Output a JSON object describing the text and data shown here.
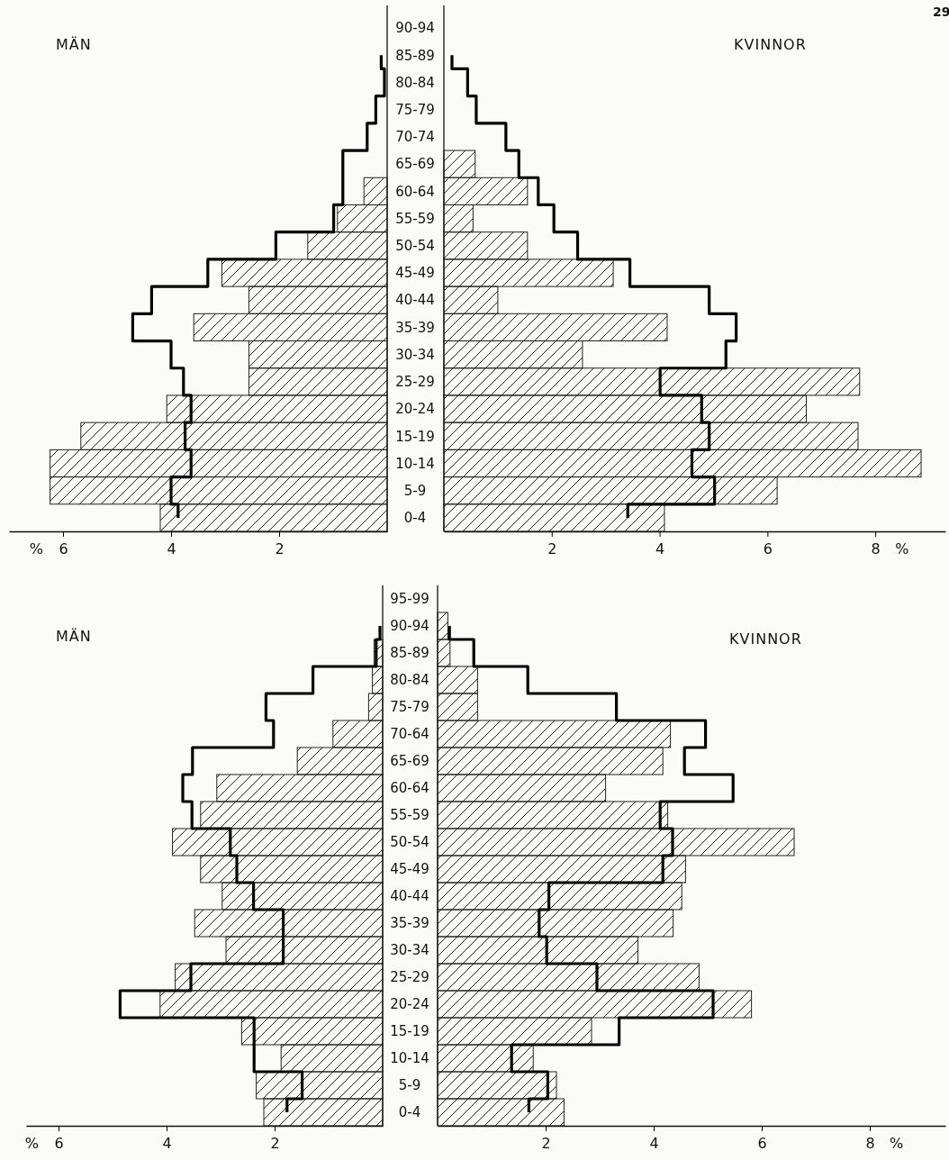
{
  "chart_data": [
    {
      "type": "bar",
      "orientation": "horizontal",
      "title": "MÄN",
      "xlabel": "%",
      "xlim": [
        7,
        0
      ],
      "xticks": [
        6,
        4,
        2
      ],
      "categories": [
        "90-94",
        "85-89",
        "80-84",
        "75-79",
        "70-74",
        "65-69",
        "60-64",
        "55-59",
        "50-54",
        "45-49",
        "40-44",
        "35-39",
        "30-34",
        "25-29",
        "20-24",
        "15-19",
        "10-14",
        "5-9",
        "0-4"
      ],
      "series": [
        {
          "type": "bar",
          "color": "#222222",
          "values": [
            null,
            null,
            null,
            null,
            null,
            null,
            0.43,
            0.92,
            1.47,
            3.06,
            2.56,
            3.58,
            2.56,
            2.56,
            4.08,
            5.67,
            6.24,
            6.24,
            4.2
          ]
        },
        {
          "type": "step",
          "color": "#000000",
          "values": [
            null,
            0.11,
            0.05,
            0.21,
            0.37,
            0.82,
            0.82,
            0.99,
            2.06,
            3.32,
            4.36,
            4.71,
            4.0,
            3.77,
            3.63,
            3.74,
            3.63,
            4.0,
            3.87
          ]
        }
      ]
    },
    {
      "type": "bar",
      "orientation": "horizontal",
      "title": "KVINNOR",
      "xlabel": "%",
      "xlim": [
        0,
        9.3
      ],
      "xticks": [
        2,
        4,
        6,
        8
      ],
      "annotations": [
        "29"
      ],
      "categories": [
        null,
        null,
        null,
        null,
        null,
        null,
        null,
        null,
        null,
        null,
        null,
        null,
        null,
        null,
        null,
        null,
        null,
        null,
        null
      ],
      "series": [
        {
          "type": "bar",
          "color": "#222222",
          "values": [
            null,
            null,
            null,
            null,
            null,
            0.58,
            1.55,
            0.54,
            1.55,
            3.14,
            1.0,
            4.14,
            2.57,
            7.71,
            6.72,
            7.68,
            8.85,
            6.18,
            4.09
          ]
        },
        {
          "type": "step",
          "color": "#000000",
          "values": [
            null,
            0.15,
            0.44,
            0.6,
            1.15,
            1.39,
            1.75,
            2.04,
            2.48,
            3.45,
            4.92,
            5.42,
            5.23,
            4.01,
            4.78,
            4.92,
            4.6,
            5.02,
            3.41
          ]
        }
      ]
    },
    {
      "type": "bar",
      "orientation": "horizontal",
      "title": "MÄN",
      "xlabel": "%",
      "xlim": [
        6.6,
        0
      ],
      "xticks": [
        6,
        4,
        2
      ],
      "categories": [
        "95-99",
        "90-94",
        "85-89",
        "80-84",
        "75-79",
        "70-64",
        "65-69",
        "60-64",
        "55-59",
        "50-54",
        "45-49",
        "40-44",
        "35-39",
        "30-34",
        "25-29",
        "20-24",
        "15-19",
        "10-14",
        "5-9",
        "0-4"
      ],
      "series": [
        {
          "type": "bar",
          "color": "#222222",
          "values": [
            null,
            null,
            0.16,
            0.19,
            0.26,
            0.92,
            1.58,
            3.07,
            3.37,
            3.89,
            3.37,
            2.97,
            3.48,
            2.9,
            3.84,
            4.12,
            2.61,
            1.88,
            2.34,
            2.2
          ]
        },
        {
          "type": "step",
          "color": "#000000",
          "values": [
            null,
            0.05,
            0.12,
            1.29,
            2.16,
            2.02,
            3.52,
            3.7,
            3.53,
            2.82,
            2.7,
            2.39,
            1.84,
            1.84,
            3.55,
            4.86,
            2.38,
            2.38,
            1.49,
            1.77
          ]
        }
      ]
    },
    {
      "type": "bar",
      "orientation": "horizontal",
      "title": "KVINNOR",
      "xlabel": "%",
      "xlim": [
        0,
        9.4
      ],
      "xticks": [
        2,
        4,
        6,
        8
      ],
      "categories": [
        null,
        null,
        null,
        null,
        null,
        null,
        null,
        null,
        null,
        null,
        null,
        null,
        null,
        null,
        null,
        null,
        null,
        null,
        null,
        null
      ],
      "series": [
        {
          "type": "bar",
          "color": "#222222",
          "values": [
            null,
            0.19,
            0.23,
            0.74,
            0.74,
            4.31,
            4.17,
            3.11,
            4.26,
            6.6,
            4.59,
            4.52,
            4.36,
            3.71,
            4.84,
            5.81,
            2.85,
            1.77,
            2.2,
            2.34
          ]
        },
        {
          "type": "step",
          "color": "#000000",
          "values": [
            null,
            0.22,
            0.67,
            1.67,
            3.31,
            4.96,
            4.57,
            5.47,
            4.12,
            4.35,
            4.17,
            2.06,
            1.88,
            2.02,
            2.95,
            5.1,
            3.36,
            1.37,
            2.04,
            1.69
          ]
        }
      ]
    }
  ]
}
